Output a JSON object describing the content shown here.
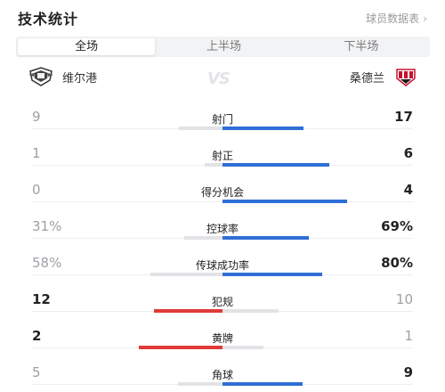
{
  "header": {
    "title": "技术统计",
    "link_label": "球员数据表",
    "link_chevron": "›"
  },
  "tabs": [
    {
      "label": "全场",
      "active": true
    },
    {
      "label": "上半场",
      "active": false
    },
    {
      "label": "下半场",
      "active": false
    }
  ],
  "teams": {
    "home": {
      "name": "维尔港",
      "crest_icon": "port-vale-crest-icon"
    },
    "away": {
      "name": "桑德兰",
      "crest_icon": "sunderland-crest-icon"
    },
    "vs": "VS"
  },
  "colors": {
    "home_bar": "#e03a3a",
    "away_bar": "#2f6fd6",
    "track": "#e2e3e6"
  },
  "stats": [
    {
      "label": "射门",
      "home": "9",
      "away": "17",
      "home_share": 0.35,
      "away_share": 0.65,
      "leader": "away"
    },
    {
      "label": "射正",
      "home": "1",
      "away": "6",
      "home_share": 0.14,
      "away_share": 0.86,
      "leader": "away"
    },
    {
      "label": "得分机会",
      "home": "0",
      "away": "4",
      "home_share": 0.0,
      "away_share": 1.0,
      "leader": "away"
    },
    {
      "label": "控球率",
      "home": "31%",
      "away": "69%",
      "home_share": 0.31,
      "away_share": 0.69,
      "leader": "away"
    },
    {
      "label": "传球成功率",
      "home": "58%",
      "away": "80%",
      "home_share": 0.58,
      "away_share": 0.8,
      "leader": "away"
    },
    {
      "label": "犯规",
      "home": "12",
      "away": "10",
      "home_share": 0.55,
      "away_share": 0.45,
      "leader": "home"
    },
    {
      "label": "黄牌",
      "home": "2",
      "away": "1",
      "home_share": 0.67,
      "away_share": 0.33,
      "leader": "home"
    },
    {
      "label": "角球",
      "home": "5",
      "away": "9",
      "home_share": 0.36,
      "away_share": 0.64,
      "leader": "away"
    }
  ]
}
